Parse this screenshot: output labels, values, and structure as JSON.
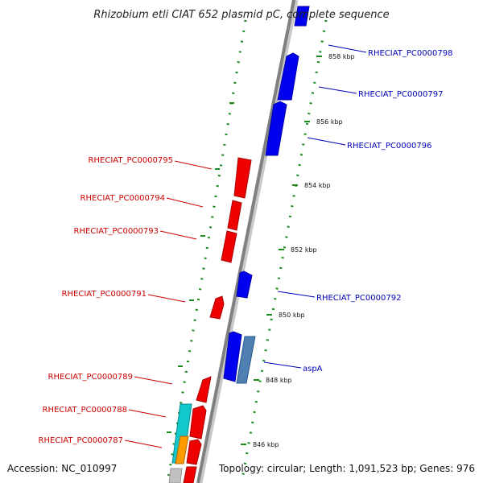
{
  "title": "Rhizobium etli CIAT 652 plasmid pC, complete sequence",
  "footer": {
    "accession": "Accession: NC_010997",
    "summary": "Topology: circular; Length: 1,091,523 bp; Genes: 976"
  },
  "colors": {
    "forward": "#0000ee",
    "reverse": "#ee0000",
    "steel": "#4f7fb0",
    "cyan": "#11c8cc",
    "orange": "#ff9900",
    "backbone": "#808080",
    "ticks": "#1a8a1a"
  },
  "ticks": [
    {
      "label": "858 kbp"
    },
    {
      "label": "856 kbp"
    },
    {
      "label": "854 kbp"
    },
    {
      "label": "852 kbp"
    },
    {
      "label": "850 kbp"
    },
    {
      "label": "848 kbp"
    },
    {
      "label": "846 kbp"
    }
  ],
  "genes_forward": [
    {
      "label": "RHECIAT_PC0000798"
    },
    {
      "label": "RHECIAT_PC0000797"
    },
    {
      "label": "RHECIAT_PC0000796"
    },
    {
      "label": "RHECIAT_PC0000792"
    },
    {
      "label": "aspA"
    }
  ],
  "genes_reverse": [
    {
      "label": "RHECIAT_PC0000795"
    },
    {
      "label": "RHECIAT_PC0000794"
    },
    {
      "label": "RHECIAT_PC0000793"
    },
    {
      "label": "RHECIAT_PC0000791"
    },
    {
      "label": "RHECIAT_PC0000789"
    },
    {
      "label": "RHECIAT_PC0000788"
    },
    {
      "label": "RHECIAT_PC0000787"
    }
  ]
}
